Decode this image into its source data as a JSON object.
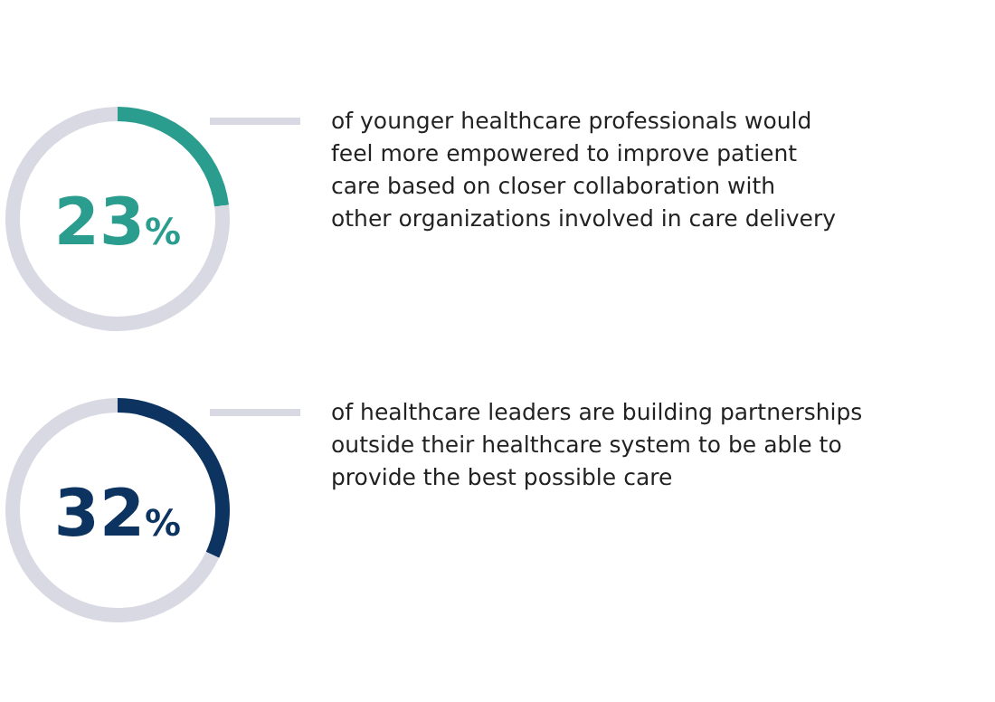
{
  "chart_data": [
    {
      "type": "donut",
      "title": "23%",
      "categories": [
        null,
        null
      ],
      "values": [
        23,
        77
      ],
      "colors": [
        "#2a9d8f",
        "#d9d9e3"
      ],
      "annotations": [
        "of younger healthcare professionals would",
        "feel more empowered to improve patient",
        "care based on closer collaboration with",
        "other organizations involved in care delivery"
      ]
    },
    {
      "type": "donut",
      "title": "32%",
      "categories": [
        null,
        null
      ],
      "values": [
        32,
        68
      ],
      "colors": [
        "#0d3461",
        "#d9d9e3"
      ],
      "annotations": [
        "of healthcare leaders are building partnerships",
        "outside their healthcare system to be able to",
        "provide the best possible care"
      ]
    }
  ]
}
